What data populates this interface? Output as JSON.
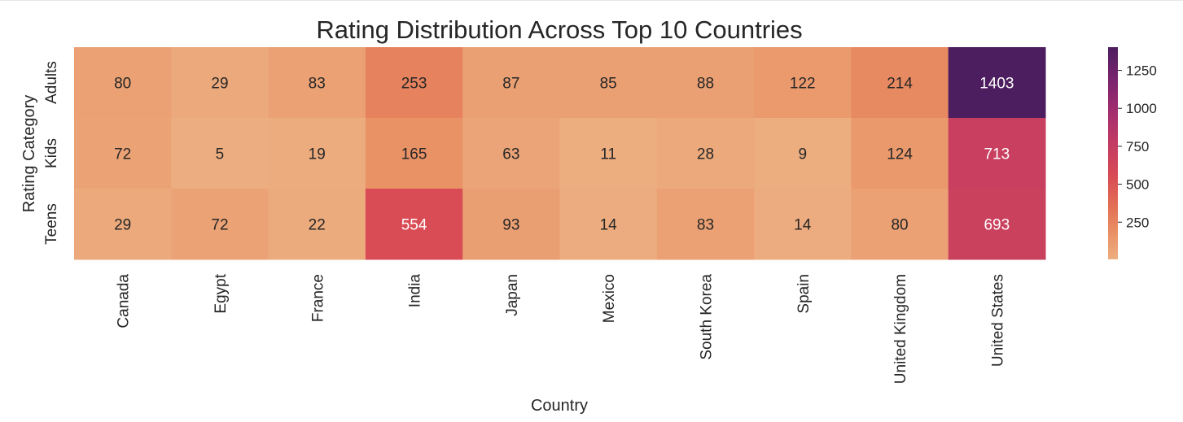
{
  "chart_data": {
    "type": "heatmap",
    "title": "Rating Distribution Across Top 10 Countries",
    "xlabel": "Country",
    "ylabel": "Rating Category",
    "x_categories": [
      "Canada",
      "Egypt",
      "France",
      "India",
      "Japan",
      "Mexico",
      "South Korea",
      "Spain",
      "United Kingdom",
      "United States"
    ],
    "y_categories": [
      "Adults",
      "Kids",
      "Teens"
    ],
    "values": [
      [
        80,
        29,
        83,
        253,
        87,
        85,
        88,
        122,
        214,
        1403
      ],
      [
        72,
        5,
        19,
        165,
        63,
        11,
        28,
        9,
        124,
        713
      ],
      [
        29,
        72,
        22,
        554,
        93,
        14,
        83,
        14,
        80,
        693
      ]
    ],
    "colormap": "flare",
    "color_range": [
      5,
      1403
    ],
    "colorbar_ticks": [
      250,
      500,
      750,
      1000,
      1250
    ],
    "annotations": true,
    "grid": false
  }
}
